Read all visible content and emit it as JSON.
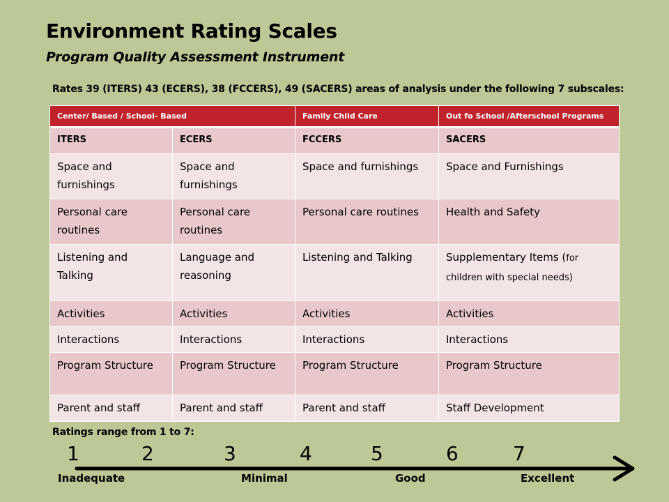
{
  "title": "Environment Rating Scales",
  "subtitle": "Program Quality Assessment Instrument",
  "intro": "Rates 39 (ITERS) 43 (ECERS), 38 (FCCERS), 49 (SACERS) areas of analysis under the following 7 subscales:",
  "table": {
    "header": [
      "Center/ Based /  School- Based",
      "Family Child Care",
      "Out fo School /Afterschool  Programs"
    ],
    "subheader": [
      "ITERS",
      "ECERS",
      "FCCERS",
      "SACERS"
    ],
    "rows": [
      [
        "Space and furnishings",
        "Space and furnishings",
        "Space and furnishings",
        "Space and Furnishings"
      ],
      [
        "Personal care routines",
        "Personal care routines",
        "Personal care routines",
        "Health and Safety"
      ],
      [
        "Listening and Talking",
        "Language and reasoning",
        "Listening and Talking",
        " Supplementary Items ("
      ],
      [
        "Activities",
        "Activities",
        "Activities",
        "Activities"
      ],
      [
        "Interactions",
        "Interactions",
        "Interactions",
        "Interactions"
      ],
      [
        "Program Structure",
        "Program Structure",
        "Program Structure",
        "Program Structure"
      ],
      [
        "Parent and staff",
        "Parent and staff",
        "Parent and staff",
        "Staff Development"
      ]
    ],
    "supplementary_note": "for children with special needs)"
  },
  "ratings": {
    "label": "Ratings range from 1 to 7:",
    "numbers": [
      "1",
      "2",
      "3",
      "4",
      "5",
      "6",
      "7"
    ],
    "words": [
      "Inadequate",
      "Minimal",
      "Good",
      "Excellent"
    ]
  }
}
